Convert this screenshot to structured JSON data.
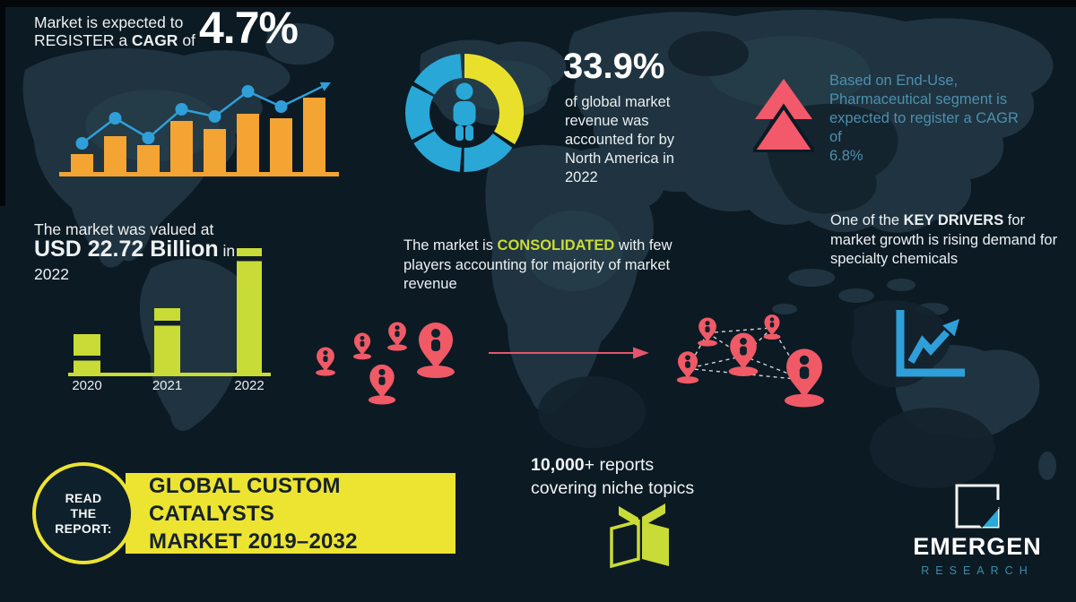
{
  "colors": {
    "background": "#0C1A24",
    "map_land": "#1F3440",
    "accent_orange": "#F4A433",
    "accent_blue": "#2F9FD9",
    "accent_yellow": "#E9E02B",
    "accent_lime": "#C9DB37",
    "accent_coral": "#EF5A66",
    "arrow_red": "#E4556B",
    "banner_yellow": "#EDE432",
    "teal_text": "#4C8FAE",
    "logo_teal": "#3E8BA6"
  },
  "cagr_section": {
    "line1": "Market is expected to",
    "line2_prefix": "REGISTER a ",
    "line2_bold": "CAGR",
    "line2_suffix": " of",
    "value": "4.7%"
  },
  "na_share_section": {
    "value": "33.9%",
    "description_lines": [
      "of global market",
      "revenue was",
      "accounted for by",
      "North America in",
      "2022"
    ]
  },
  "pharma_section": {
    "statement_lines": [
      "Based on End-Use,",
      "Pharmaceutical segment is",
      "expected to register a CAGR",
      "of"
    ],
    "value": "6.8%"
  },
  "valuation_section": {
    "line1": "The market was valued at",
    "value_bold": "USD 22.72 Billion",
    "value_suffix": " in",
    "year": "2022"
  },
  "consolidated_section": {
    "prefix": "The market is ",
    "highlight": "CONSOLIDATED",
    "suffix": " with few players accounting for majority of market revenue"
  },
  "drivers_section": {
    "prefix": "One of the ",
    "bold": "KEY DRIVERS",
    "suffix": " for market growth is rising demand for specialty chemicals"
  },
  "report_cta": {
    "badge_lines": [
      "READ",
      "THE",
      "REPORT:"
    ],
    "title_line1": "GLOBAL CUSTOM CATALYSTS",
    "title_line2": "MARKET 2019–2032"
  },
  "reports_promo": {
    "count_bold": "10,000",
    "count_suffix": "+ reports",
    "line2": "covering niche topics"
  },
  "brand": {
    "name": "EMERGEN",
    "subname": "RESEARCH"
  },
  "chart_data": [
    {
      "id": "cagr-trend",
      "type": "bar",
      "subtype": "bars-with-trend-line-and-arrow",
      "title": "Market is expected to REGISTER a CAGR of 4.7%",
      "values": [
        20,
        40,
        30,
        57,
        48,
        65,
        60,
        83
      ],
      "line_values": [
        32,
        60,
        38,
        70,
        62,
        90,
        73
      ],
      "arrow_peak": 100,
      "bar_color": "#F4A433",
      "line_color": "#2F9FD9",
      "axis_labels": false
    },
    {
      "id": "north-america-share",
      "type": "pie",
      "donut": true,
      "title": "33.9% of global market revenue was accounted for by North America in 2022",
      "segments": [
        {
          "label": "North America",
          "value": 33.9,
          "color": "#E9E02B"
        },
        {
          "label": "",
          "value": 66.1,
          "color": "#29A8D7"
        }
      ],
      "center_icon": "person"
    },
    {
      "id": "market-value",
      "type": "bar",
      "title": "The market was valued at USD 22.72 Billion in 2022",
      "categories": [
        "2020",
        "2021",
        "2022"
      ],
      "values_relative": [
        43,
        72,
        139
      ],
      "labeled_value": {
        "category": "2022",
        "value": "USD 22.72 Billion"
      },
      "bar_color": "#C9DB37"
    }
  ]
}
